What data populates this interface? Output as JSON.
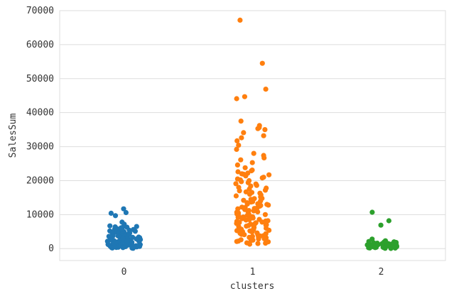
{
  "chart_data": {
    "type": "scatter",
    "subtype": "strip",
    "title": "",
    "xlabel": "clusters",
    "ylabel": "SalesSum",
    "categories": [
      "0",
      "1",
      "2"
    ],
    "ylim": [
      -3500,
      70000
    ],
    "yticks": [
      0,
      10000,
      20000,
      30000,
      40000,
      50000,
      60000,
      70000
    ],
    "grid": "horizontal",
    "legend": "none",
    "colors": {
      "0": "#1f77b4",
      "1": "#ff7f0e",
      "2": "#2ca02c"
    },
    "series": [
      {
        "category": "0",
        "values": [
          11700,
          10600,
          10400,
          9700,
          7800,
          7200,
          6700,
          6500,
          6300,
          6100,
          5900,
          5600,
          5400,
          5200,
          5000,
          4800,
          4600,
          4400,
          4200,
          4000,
          3800,
          3600,
          3400,
          3200,
          3000,
          2800,
          2600,
          2400,
          2200,
          2000,
          1800,
          1600,
          1400,
          1200,
          1000,
          800,
          600,
          400,
          200,
          100,
          5500,
          4500,
          3500,
          2500,
          1500,
          500,
          300,
          900,
          1700,
          2900,
          3300,
          4100,
          4900,
          5800,
          6200,
          700,
          1100,
          1900,
          2300,
          2700,
          3100,
          3700,
          3900,
          4300,
          4700,
          5100,
          5300,
          5700,
          6000,
          6400,
          150,
          250,
          350,
          450,
          550,
          650,
          750,
          850,
          950,
          1050,
          1150,
          1250,
          1350,
          1450,
          1550,
          1650,
          1750,
          1850,
          1950,
          2050,
          2150,
          2250,
          2350,
          2450,
          2550,
          2650,
          2750,
          2850,
          2950,
          3050
        ]
      },
      {
        "category": "1",
        "values": [
          67200,
          54500,
          46900,
          44700,
          44100,
          37500,
          36200,
          35600,
          35300,
          35000,
          34100,
          33200,
          32600,
          31700,
          30400,
          29200,
          28000,
          27400,
          26700,
          26100,
          25300,
          24600,
          23800,
          23100,
          22600,
          22200,
          21900,
          21400,
          20800,
          20200,
          19700,
          19100,
          18600,
          18000,
          17500,
          17000,
          16500,
          16000,
          15500,
          15000,
          14500,
          14000,
          13500,
          13000,
          12500,
          12000,
          11500,
          11000,
          10500,
          10000,
          9600,
          9200,
          8800,
          8400,
          8000,
          7600,
          7200,
          6800,
          6400,
          6000,
          5600,
          5200,
          4800,
          4400,
          4000,
          3600,
          3200,
          2800,
          2400,
          2000,
          1600,
          1300,
          9400,
          8600,
          7800,
          7000,
          6200,
          5400,
          4600,
          3800,
          3000,
          2200,
          12800,
          11800,
          10800,
          9900,
          15800,
          14800,
          13800,
          18400,
          17200,
          16300,
          20500,
          19400,
          22900,
          21700,
          1500,
          2600,
          3400,
          4200,
          5000,
          5800,
          6600,
          7400,
          8200,
          9000,
          10200,
          11200,
          12200,
          13200,
          14200,
          15200,
          16700,
          17800,
          19000,
          20000,
          21000,
          22000,
          9800,
          8900,
          8100,
          7300,
          6500,
          5700,
          4900,
          4100,
          3300,
          2500,
          1700,
          10700,
          11700,
          12700,
          13700,
          14700,
          6900,
          7700,
          8500,
          9300,
          10100,
          5300,
          4500,
          3700,
          2900,
          2100,
          11100,
          12100,
          13100
        ]
      },
      {
        "category": "2",
        "values": [
          10700,
          8200,
          6900,
          2800,
          2300,
          2000,
          1800,
          1600,
          1400,
          1300,
          1200,
          1100,
          1000,
          900,
          800,
          700,
          600,
          500,
          400,
          300,
          200,
          150,
          100,
          50,
          1500,
          1700,
          1900,
          2100,
          950,
          850,
          750,
          650,
          550,
          450,
          350,
          250,
          1050,
          1150,
          1250,
          1350,
          1450
        ]
      }
    ]
  }
}
